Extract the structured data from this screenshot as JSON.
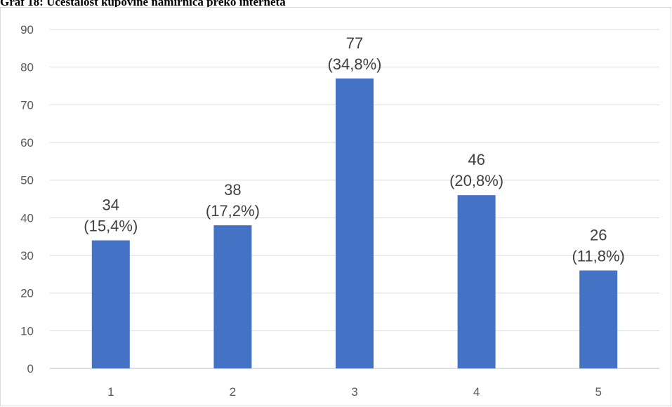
{
  "title": "Graf 18: Učestalost kupovine namirnica preko interneta",
  "colors": {
    "bar": "#4472c4",
    "grid": "#d9d9d9",
    "axis": "#bfbfbf"
  },
  "chart_data": {
    "type": "bar",
    "title": "Graf 18: Učestalost kupovine namirnica preko interneta",
    "xlabel": "",
    "ylabel": "",
    "categories": [
      "1",
      "2",
      "3",
      "4",
      "5"
    ],
    "values": [
      34,
      38,
      77,
      46,
      26
    ],
    "data_labels": [
      [
        "34",
        "(15,4%)"
      ],
      [
        "38",
        "(17,2%)"
      ],
      [
        "77",
        "(34,8%)"
      ],
      [
        "46",
        "(20,8%)"
      ],
      [
        "26",
        "(11,8%)"
      ]
    ],
    "ylim": [
      0,
      90
    ],
    "yticks": [
      0,
      10,
      20,
      30,
      40,
      50,
      60,
      70,
      80,
      90
    ],
    "grid": true,
    "legend": "none"
  }
}
